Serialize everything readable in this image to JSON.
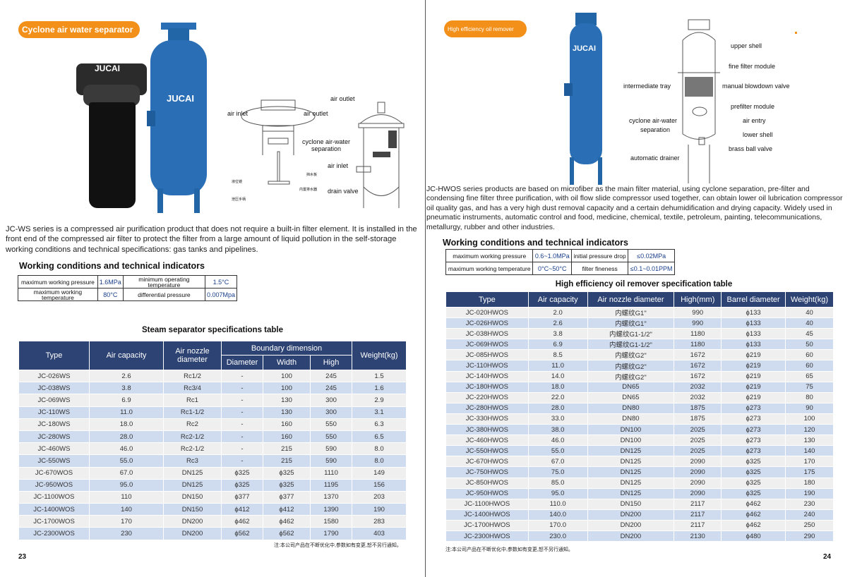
{
  "left": {
    "badge": "Cyclone air water separator",
    "brand_black": "JUCAI",
    "brand_blue": "JUCAI",
    "diagram_labels": {
      "air_outlet_top": "air outlet",
      "air_inlet": "air inlet",
      "air_outlet": "air outlet",
      "cyclone": "cyclone air-water separation",
      "air_inlet2": "air inlet",
      "drain_valve": "drain valve",
      "cn1": "挡水板",
      "cn2": "液位镜",
      "cn3": "内置排水器",
      "cn4": "泄压手柄"
    },
    "description": "JC-WS series is a compressed air purification product that does not require a built-in filter element. It is installed in the front end of the compressed air filter to protect the filter from a large amount of liquid pollution in the self-storage working conditions and technical specifications: gas tanks and pipelines.",
    "wc_title": "Working conditions and technical indicators",
    "wc": [
      [
        "maximum working pressure",
        "1.6MPa",
        "minimum operating temperature",
        "1.5°C"
      ],
      [
        "maximum working temperature",
        "80°C",
        "differential pressure",
        "0.007Mpa"
      ]
    ],
    "table_title": "Steam separator specifications table",
    "headers": {
      "type": "Type",
      "capacity": "Air capacity",
      "nozzle": "Air nozzle diameter",
      "boundary": "Boundary dimension",
      "diameter": "Diameter",
      "width": "Width",
      "high": "High",
      "weight": "Weight(kg)"
    },
    "rows": [
      [
        "JC-026WS",
        "2.6",
        "Rc1/2",
        "-",
        "100",
        "245",
        "1.5"
      ],
      [
        "JC-038WS",
        "3.8",
        "Rc3/4",
        "-",
        "100",
        "245",
        "1.6"
      ],
      [
        "JC-069WS",
        "6.9",
        "Rc1",
        "-",
        "130",
        "300",
        "2.9"
      ],
      [
        "JC-110WS",
        "11.0",
        "Rc1-1/2",
        "-",
        "130",
        "300",
        "3.1"
      ],
      [
        "JC-180WS",
        "18.0",
        "Rc2",
        "-",
        "160",
        "550",
        "6.3"
      ],
      [
        "JC-280WS",
        "28.0",
        "Rc2-1/2",
        "-",
        "160",
        "550",
        "6.5"
      ],
      [
        "JC-460WS",
        "46.0",
        "Rc2-1/2",
        "-",
        "215",
        "590",
        "8.0"
      ],
      [
        "JC-550WS",
        "55.0",
        "Rc3",
        "-",
        "215",
        "590",
        "8.0"
      ],
      [
        "JC-670WOS",
        "67.0",
        "DN125",
        "ϕ325",
        "ϕ325",
        "1110",
        "149"
      ],
      [
        "JC-950WOS",
        "95.0",
        "DN125",
        "ϕ325",
        "ϕ325",
        "1195",
        "156"
      ],
      [
        "JC-1100WOS",
        "110",
        "DN150",
        "ϕ377",
        "ϕ377",
        "1370",
        "203"
      ],
      [
        "JC-1400WOS",
        "140",
        "DN150",
        "ϕ412",
        "ϕ412",
        "1390",
        "190"
      ],
      [
        "JC-1700WOS",
        "170",
        "DN200",
        "ϕ462",
        "ϕ462",
        "1580",
        "283"
      ],
      [
        "JC-2300WOS",
        "230",
        "DN200",
        "ϕ562",
        "ϕ562",
        "1790",
        "403"
      ]
    ],
    "note": "注:本公司产品在不断优化中,参数如有变更,恕不另行通知。",
    "page": "23"
  },
  "right": {
    "badge": "High efficiency oil remover",
    "brand": "JUCAI",
    "diagram_labels": {
      "upper_shell": "upper shell",
      "fine_filter": "fine filter module",
      "tray": "intermediate tray",
      "blowdown": "manual blowdown valve",
      "prefilter": "prefilter module",
      "cyclone": "cyclone air-water",
      "cyclone2": "separation",
      "air_entry": "air entry",
      "lower_shell": "lower shell",
      "ball_valve": "brass ball valve",
      "drainer": "automatic drainer"
    },
    "description": "JC-HWOS series products are based on microfiber as the main filter material, using cyclone separation, pre-filter and condensing fine filter three purification, with oil flow slide compressor used together, can obtain lower oil lubrication compressor oil quality gas, and has a very high dust removal capacity and a certain dehumidification and drying capacity. Widely used in pneumatic instruments, automatic control and food, medicine, chemical, textile, petroleum, painting, telecommunications, metallurgy, rubber and other industries.",
    "wc_title": "Working conditions and technical indicators",
    "wc": [
      [
        "maximum working pressure",
        "0.6~1.0MPa",
        "initial pressure drop",
        "≤0.02MPa"
      ],
      [
        "maximum working temperature",
        "0°C~50°C",
        "filter fineness",
        "≤0.1~0.01PPM"
      ]
    ],
    "table_title": "High efficiency oil remover specification table",
    "headers": [
      "Type",
      "Air capacity",
      "Air nozzle diameter",
      "High(mm)",
      "Barrel diameter",
      "Weight(kg)"
    ],
    "rows": [
      [
        "JC-020HWOS",
        "2.0",
        "内螺纹G1\"",
        "990",
        "ϕ133",
        "40"
      ],
      [
        "JC-026HWOS",
        "2.6",
        "内螺纹G1\"",
        "990",
        "ϕ133",
        "40"
      ],
      [
        "JC-038HWOS",
        "3.8",
        "内螺纹G1-1/2\"",
        "1180",
        "ϕ133",
        "45"
      ],
      [
        "JC-069HWOS",
        "6.9",
        "内螺纹G1-1/2\"",
        "1180",
        "ϕ133",
        "50"
      ],
      [
        "JC-085HWOS",
        "8.5",
        "内螺纹G2\"",
        "1672",
        "ϕ219",
        "60"
      ],
      [
        "JC-110HWOS",
        "11.0",
        "内螺纹G2\"",
        "1672",
        "ϕ219",
        "60"
      ],
      [
        "JC-140HWOS",
        "14.0",
        "内螺纹G2\"",
        "1672",
        "ϕ219",
        "65"
      ],
      [
        "JC-180HWOS",
        "18.0",
        "DN65",
        "2032",
        "ϕ219",
        "75"
      ],
      [
        "JC-220HWOS",
        "22.0",
        "DN65",
        "2032",
        "ϕ219",
        "80"
      ],
      [
        "JC-280HWOS",
        "28.0",
        "DN80",
        "1875",
        "ϕ273",
        "90"
      ],
      [
        "JC-330HWOS",
        "33.0",
        "DN80",
        "1875",
        "ϕ273",
        "100"
      ],
      [
        "JC-380HWOS",
        "38.0",
        "DN100",
        "2025",
        "ϕ273",
        "120"
      ],
      [
        "JC-460HWOS",
        "46.0",
        "DN100",
        "2025",
        "ϕ273",
        "130"
      ],
      [
        "JC-550HWOS",
        "55.0",
        "DN125",
        "2025",
        "ϕ273",
        "140"
      ],
      [
        "JC-670HWOS",
        "67.0",
        "DN125",
        "2090",
        "ϕ325",
        "170"
      ],
      [
        "JC-750HWOS",
        "75.0",
        "DN125",
        "2090",
        "ϕ325",
        "175"
      ],
      [
        "JC-850HWOS",
        "85.0",
        "DN125",
        "2090",
        "ϕ325",
        "180"
      ],
      [
        "JC-950HWOS",
        "95.0",
        "DN125",
        "2090",
        "ϕ325",
        "190"
      ],
      [
        "JC-1100HWOS",
        "110.0",
        "DN150",
        "2117",
        "ϕ462",
        "230"
      ],
      [
        "JC-1400HWOS",
        "140.0",
        "DN200",
        "2117",
        "ϕ462",
        "240"
      ],
      [
        "JC-1700HWOS",
        "170.0",
        "DN200",
        "2117",
        "ϕ462",
        "250"
      ],
      [
        "JC-2300HWOS",
        "230.0",
        "DN200",
        "2130",
        "ϕ480",
        "290"
      ]
    ],
    "note": "注:本公司产品在不断优化中,参数如有变更,恕不另行通知。",
    "page": "24"
  },
  "colors": {
    "badge": "#f39019",
    "header": "#2d4373",
    "row_alt": "#cfdcf0",
    "tank_blue": "#2a6fb5"
  }
}
